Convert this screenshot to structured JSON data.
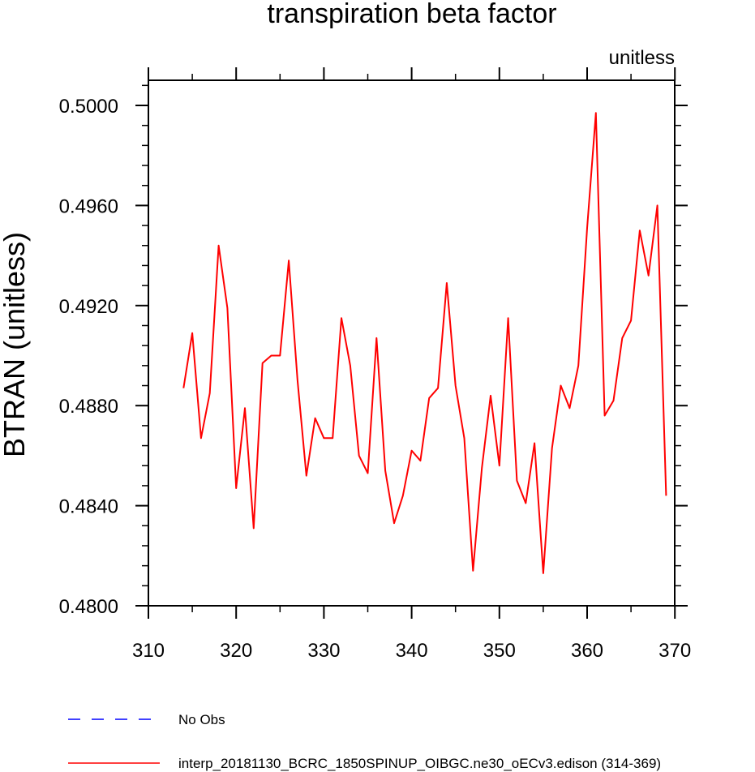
{
  "chart_data": {
    "type": "line",
    "title": "transpiration beta factor",
    "units_label": "unitless",
    "xlabel": "",
    "ylabel": "BTRAN  (unitless)",
    "xlim": [
      310,
      370
    ],
    "ylim": [
      0.48,
      0.501
    ],
    "x_ticks": [
      310,
      320,
      330,
      340,
      350,
      360,
      370
    ],
    "x_tick_labels": [
      "310",
      "320",
      "330",
      "340",
      "350",
      "360",
      "370"
    ],
    "y_ticks": [
      0.48,
      0.484,
      0.488,
      0.492,
      0.496,
      0.5
    ],
    "y_tick_labels": [
      "0.4800",
      "0.4840",
      "0.4880",
      "0.4920",
      "0.4960",
      "0.5000"
    ],
    "grid": false,
    "legend_position": "bottom",
    "series": [
      {
        "name": "interp_20181130_BCRC_1850SPINUP_OIBGC.ne30_oECv3.edison (314-369)",
        "color": "#ff0000",
        "dash": "solid",
        "x": [
          314,
          315,
          316,
          317,
          318,
          319,
          320,
          321,
          322,
          323,
          324,
          325,
          326,
          327,
          328,
          329,
          330,
          331,
          332,
          333,
          334,
          335,
          336,
          337,
          338,
          339,
          340,
          341,
          342,
          343,
          344,
          345,
          346,
          347,
          348,
          349,
          350,
          351,
          352,
          353,
          354,
          355,
          356,
          357,
          358,
          359,
          360,
          361,
          362,
          363,
          364,
          365,
          366,
          367,
          368,
          369
        ],
        "values": [
          0.4887,
          0.4909,
          0.4867,
          0.4885,
          0.4944,
          0.4919,
          0.4847,
          0.4879,
          0.4831,
          0.4897,
          0.49,
          0.49,
          0.4938,
          0.489,
          0.4852,
          0.4875,
          0.4867,
          0.4867,
          0.4915,
          0.4896,
          0.486,
          0.4853,
          0.4907,
          0.4854,
          0.4833,
          0.4844,
          0.4862,
          0.4858,
          0.4883,
          0.4887,
          0.4929,
          0.4888,
          0.4867,
          0.4814,
          0.4855,
          0.4884,
          0.4856,
          0.4915,
          0.485,
          0.4841,
          0.4865,
          0.4813,
          0.4863,
          0.4888,
          0.4879,
          0.4896,
          0.4951,
          0.4997,
          0.4876,
          0.4882,
          0.4907,
          0.4914,
          0.495,
          0.4932,
          0.496,
          0.4844
        ]
      },
      {
        "name": "No Obs",
        "color": "#0000ff",
        "dash": "dashed",
        "x": [],
        "values": []
      }
    ]
  }
}
